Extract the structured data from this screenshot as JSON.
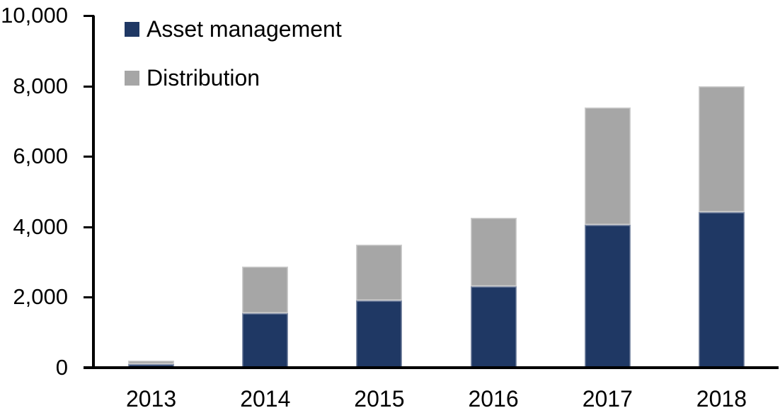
{
  "chart_data": {
    "type": "bar",
    "stacked": true,
    "title": "",
    "xlabel": "",
    "ylabel": "",
    "categories": [
      "2013",
      "2014",
      "2015",
      "2016",
      "2017",
      "2018"
    ],
    "series": [
      {
        "name": "Asset management",
        "color": "#1f3864",
        "values": [
          100,
          1550,
          1900,
          2310,
          4050,
          4420
        ]
      },
      {
        "name": "Distribution",
        "color": "#a6a6a6",
        "values": [
          100,
          1320,
          1600,
          1940,
          3350,
          3580
        ]
      }
    ],
    "totals": [
      200,
      2870,
      3500,
      4250,
      7400,
      8000
    ],
    "ylim": [
      0,
      10000
    ],
    "yticks": [
      {
        "value": 10000,
        "label": "10,000"
      },
      {
        "value": 8000,
        "label": "8,000"
      },
      {
        "value": 6000,
        "label": "6,000"
      },
      {
        "value": 4000,
        "label": "4,000"
      },
      {
        "value": 2000,
        "label": "2,000"
      },
      {
        "value": 0,
        "label": "0"
      }
    ],
    "grid": false,
    "legend_position": "top-left-inside",
    "colors": {
      "axis": "#000000",
      "text": "#000000",
      "background": "#ffffff"
    }
  }
}
